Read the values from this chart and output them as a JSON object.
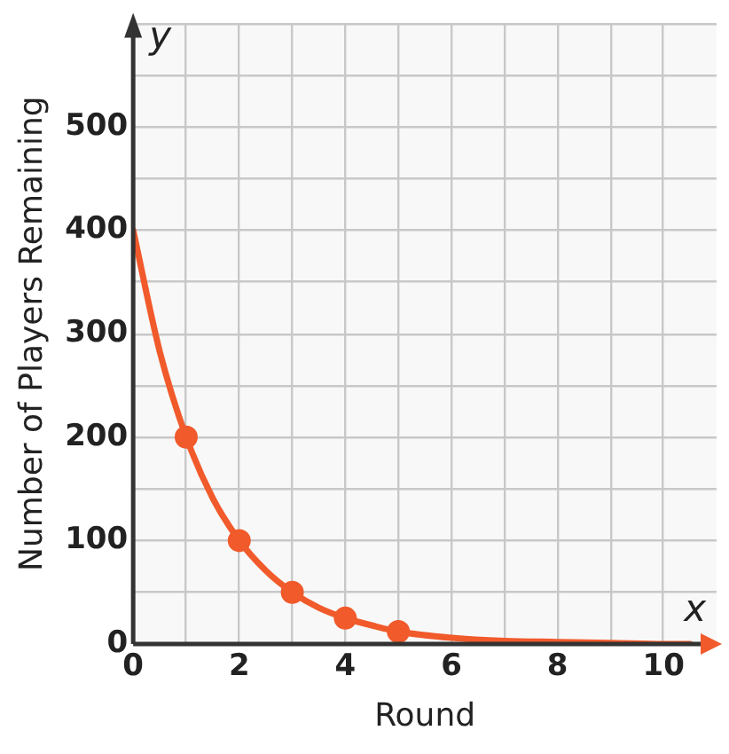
{
  "chart_data": {
    "type": "line",
    "xlabel": "Round",
    "ylabel": "Number of Players Remaining",
    "annotations": [
      "x",
      "y"
    ],
    "series": [
      {
        "color": "#f15a2b",
        "marker": "none",
        "x": [
          0,
          0.5,
          1,
          1.5,
          2,
          2.5,
          3,
          3.5,
          4,
          4.5,
          5,
          6,
          7,
          8,
          9,
          10,
          10.5
        ],
        "values": [
          400,
          283,
          200,
          141,
          100,
          71,
          50,
          35,
          25,
          18,
          12,
          6,
          3,
          2,
          1,
          0,
          0
        ]
      },
      {
        "type": "scatter",
        "color": "#f15a2b",
        "marker": "circle",
        "x": [
          1,
          2,
          3,
          4,
          5
        ],
        "values": [
          200,
          100,
          50,
          25,
          12
        ]
      }
    ],
    "xlim": [
      0,
      11
    ],
    "xticks": [
      0,
      {
        "value": 1,
        "label": null
      },
      2,
      {
        "value": 3,
        "label": null
      },
      4,
      {
        "value": 5,
        "label": null
      },
      6,
      {
        "value": 7,
        "label": null
      },
      8,
      {
        "value": 9,
        "label": null
      },
      10
    ],
    "ylim": [
      0,
      600
    ],
    "yticks": [
      0,
      {
        "value": 50,
        "label": null
      },
      100,
      {
        "value": 150,
        "label": null
      },
      200,
      {
        "value": 250,
        "label": null
      },
      300,
      {
        "value": 350,
        "label": null
      },
      400,
      {
        "value": 450,
        "label": null
      },
      500,
      {
        "value": 550,
        "label": null
      },
      {
        "value": 600,
        "label": null
      }
    ],
    "grid": true,
    "legend": false
  }
}
